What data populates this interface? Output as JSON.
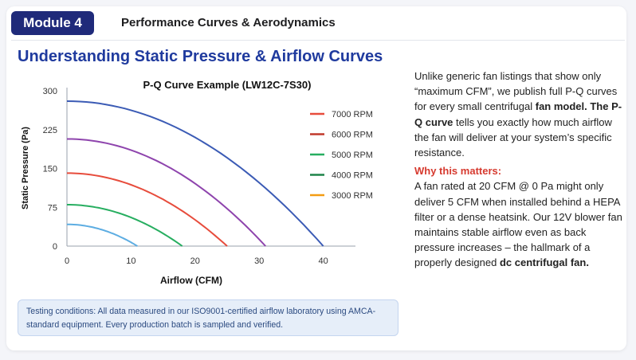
{
  "header": {
    "module_label": "Module 4",
    "module_title": "Performance Curves & Aerodynamics"
  },
  "page_title": "Understanding Static Pressure & Airflow Curves",
  "colors": {
    "badge": "#1f2a7a",
    "title": "#1f3a9e",
    "highlight": "#d63a2f",
    "note_bg": "#e6eef9"
  },
  "chart_data": {
    "type": "line",
    "title": "P-Q Curve Example (LW12C-7S30)",
    "xlabel": "Airflow (CFM)",
    "ylabel": "Static Pressure (Pa)",
    "xlim": [
      0,
      50
    ],
    "ylim": [
      0,
      300
    ],
    "xticks": [
      "0",
      "10",
      "20",
      "30",
      "40"
    ],
    "yticks": [
      "0",
      "75",
      "150",
      "225",
      "300"
    ],
    "legend_position": "right",
    "series": [
      {
        "name": "7000 RPM",
        "color": "#e74c3c",
        "max_pressure": 141,
        "max_airflow": 25
      },
      {
        "name": "6000 RPM",
        "color": "#c0392b",
        "max_pressure": 0,
        "max_airflow": 0
      },
      {
        "name": "5000 RPM",
        "color": "#27ae60",
        "max_pressure": 0,
        "max_airflow": 0
      },
      {
        "name": "4000 RPM",
        "color": "#1e8449",
        "max_pressure": 0,
        "max_airflow": 0
      },
      {
        "name": "3000 RPM",
        "color": "#f39c12",
        "max_pressure": 0,
        "max_airflow": 0
      }
    ],
    "curves": [
      {
        "color": "#3b5bb5",
        "max_pressure": 280,
        "max_airflow": 40
      },
      {
        "color": "#8e44ad",
        "max_pressure": 207,
        "max_airflow": 31
      },
      {
        "color": "#e74c3c",
        "max_pressure": 141,
        "max_airflow": 25
      },
      {
        "color": "#27ae60",
        "max_pressure": 80,
        "max_airflow": 18
      },
      {
        "color": "#5dade2",
        "max_pressure": 42,
        "max_airflow": 11
      }
    ]
  },
  "note": "Testing conditions: All data measured in our ISO9001-certified airflow laboratory using AMCA-standard equipment. Every production batch is sampled and verified.",
  "body": {
    "p1_a": "Unlike generic fan listings that show only “maximum CFM”, we publish full P-Q curves for every small centrifugal ",
    "p1_b": "fan model. The P-Q curve",
    "p1_c": " tells you exactly how much airflow the fan will deliver at your system’s specific resistance.",
    "why_heading": "Why this matters:",
    "p2_a": "A fan rated at 20 CFM @ 0 Pa might only deliver 5 CFM when installed behind a HEPA filter or a dense heatsink. Our 12V blower fan maintains stable airflow even as back pressure increases – the hallmark of a properly designed ",
    "p2_b": "dc centrifugal fan."
  }
}
